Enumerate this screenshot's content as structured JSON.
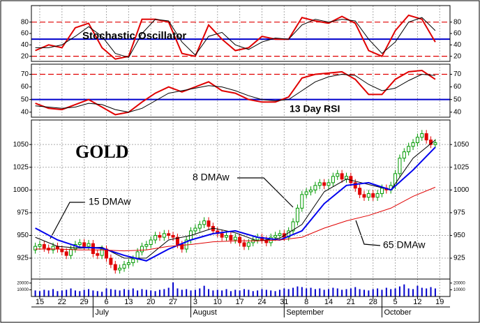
{
  "chart_data": [
    {
      "type": "line",
      "title": "Stochastic Oscillator",
      "ylim": [
        11,
        109
      ],
      "yticks": [
        20,
        40,
        60,
        80
      ],
      "hlines": [
        {
          "value": 80,
          "color": "#e00000",
          "style": "dashed"
        },
        {
          "value": 50,
          "color": "#0000cc",
          "style": "solid"
        },
        {
          "value": 20,
          "color": "#e00000",
          "style": "dashed"
        }
      ],
      "series": [
        {
          "color": "#e00000",
          "x": [
            0,
            3,
            6,
            9,
            12,
            15,
            18,
            21,
            24,
            27,
            30,
            33,
            36,
            39,
            42,
            45,
            48,
            51,
            54,
            57,
            60,
            63,
            66,
            69,
            72,
            75,
            78,
            81,
            84,
            87,
            90
          ],
          "values": [
            30,
            40,
            35,
            70,
            78,
            35,
            15,
            20,
            85,
            85,
            80,
            25,
            20,
            75,
            50,
            30,
            35,
            55,
            50,
            50,
            88,
            82,
            78,
            90,
            78,
            30,
            20,
            65,
            92,
            85,
            45
          ]
        },
        {
          "color": "#000000",
          "x": [
            0,
            3,
            6,
            9,
            12,
            15,
            18,
            21,
            24,
            27,
            30,
            33,
            36,
            39,
            42,
            45,
            48,
            51,
            54,
            57,
            60,
            63,
            66,
            69,
            72,
            75,
            78,
            81,
            84,
            87,
            90
          ],
          "values": [
            35,
            35,
            40,
            55,
            72,
            55,
            25,
            18,
            60,
            85,
            82,
            45,
            22,
            55,
            62,
            40,
            32,
            45,
            52,
            50,
            75,
            85,
            80,
            85,
            82,
            50,
            25,
            45,
            80,
            88,
            65
          ]
        }
      ]
    },
    {
      "type": "line",
      "title": "13 Day RSI",
      "ylim": [
        36,
        78
      ],
      "yticks": [
        40,
        50,
        60,
        70
      ],
      "hlines": [
        {
          "value": 70,
          "color": "#e00000",
          "style": "dashed"
        },
        {
          "value": 50,
          "color": "#0000cc",
          "style": "solid"
        }
      ],
      "series": [
        {
          "color": "#e00000",
          "x": [
            0,
            3,
            6,
            9,
            12,
            15,
            18,
            21,
            24,
            27,
            30,
            33,
            36,
            39,
            42,
            45,
            48,
            51,
            54,
            57,
            60,
            63,
            66,
            69,
            72,
            75,
            78,
            81,
            84,
            87,
            90
          ],
          "values": [
            47,
            43,
            42,
            46,
            50,
            44,
            38,
            40,
            48,
            55,
            60,
            56,
            60,
            64,
            57,
            55,
            50,
            48,
            48,
            52,
            67,
            70,
            71,
            72,
            66,
            54,
            54,
            66,
            72,
            73,
            66
          ]
        },
        {
          "color": "#000000",
          "x": [
            0,
            3,
            6,
            9,
            12,
            15,
            18,
            21,
            24,
            27,
            30,
            33,
            36,
            39,
            42,
            45,
            48,
            51,
            54,
            57,
            60,
            63,
            66,
            69,
            72,
            75,
            78,
            81,
            84,
            87,
            90
          ],
          "values": [
            45,
            44,
            43,
            44,
            47,
            46,
            42,
            40,
            43,
            49,
            55,
            57,
            59,
            61,
            60,
            57,
            53,
            50,
            49,
            50,
            57,
            64,
            68,
            70,
            69,
            62,
            57,
            59,
            65,
            70,
            69
          ]
        }
      ]
    },
    {
      "type": "candlestick",
      "title": "GOLD",
      "ylim": [
        902,
        1077
      ],
      "yticks": [
        925,
        950,
        975,
        1000,
        1025,
        1050
      ],
      "grid": true,
      "up_color": "#009900",
      "down_color": "#e00000",
      "open": [
        934,
        938,
        940,
        936,
        934,
        938,
        935,
        932,
        928,
        935,
        940,
        942,
        938,
        941,
        930,
        928,
        935,
        925,
        918,
        912,
        914,
        918,
        920,
        924,
        932,
        938,
        940,
        945,
        950,
        948,
        952,
        950,
        948,
        940,
        935,
        945,
        955,
        958,
        962,
        966,
        960,
        955,
        952,
        948,
        950,
        945,
        948,
        942,
        938,
        942,
        945,
        948,
        945,
        942,
        948,
        950,
        952,
        948,
        955,
        965,
        980,
        995,
        998,
        1000,
        1005,
        1008,
        1005,
        1008,
        1015,
        1018,
        1012,
        1015,
        1008,
        1002,
        995,
        992,
        996,
        992,
        996,
        1002,
        1000,
        1005,
        1018,
        1035,
        1042,
        1048,
        1052,
        1058,
        1062,
        1055,
        1050
      ],
      "high": [
        942,
        944,
        944,
        940,
        942,
        942,
        939,
        936,
        939,
        944,
        946,
        946,
        945,
        945,
        934,
        939,
        939,
        929,
        922,
        918,
        922,
        924,
        928,
        936,
        942,
        944,
        949,
        954,
        954,
        956,
        956,
        954,
        952,
        944,
        949,
        959,
        962,
        966,
        970,
        970,
        964,
        959,
        956,
        954,
        954,
        952,
        952,
        946,
        946,
        949,
        952,
        952,
        949,
        952,
        954,
        956,
        956,
        959,
        969,
        984,
        999,
        1002,
        1004,
        1009,
        1012,
        1012,
        1012,
        1019,
        1022,
        1022,
        1019,
        1019,
        1012,
        1006,
        999,
        1000,
        1000,
        1000,
        1006,
        1006,
        1009,
        1022,
        1039,
        1046,
        1052,
        1056,
        1062,
        1066,
        1066,
        1059,
        1056
      ],
      "low": [
        930,
        934,
        932,
        930,
        930,
        931,
        928,
        924,
        924,
        931,
        936,
        934,
        934,
        926,
        924,
        924,
        921,
        914,
        908,
        908,
        910,
        914,
        916,
        920,
        928,
        934,
        936,
        941,
        944,
        944,
        946,
        944,
        936,
        931,
        931,
        941,
        951,
        954,
        958,
        956,
        951,
        948,
        944,
        944,
        941,
        941,
        938,
        934,
        934,
        938,
        941,
        941,
        938,
        938,
        944,
        946,
        944,
        944,
        951,
        961,
        976,
        991,
        994,
        996,
        1001,
        1001,
        1001,
        1004,
        1011,
        1008,
        1008,
        1004,
        998,
        991,
        988,
        988,
        988,
        988,
        992,
        996,
        996,
        1001,
        1014,
        1031,
        1038,
        1044,
        1048,
        1054,
        1051,
        1046,
        1046
      ],
      "close": [
        938,
        940,
        936,
        934,
        938,
        935,
        932,
        928,
        935,
        940,
        942,
        938,
        941,
        930,
        928,
        935,
        925,
        918,
        912,
        914,
        918,
        920,
        924,
        932,
        938,
        940,
        945,
        950,
        948,
        952,
        950,
        948,
        940,
        935,
        945,
        955,
        958,
        962,
        966,
        960,
        955,
        952,
        948,
        950,
        945,
        948,
        942,
        938,
        942,
        945,
        948,
        945,
        942,
        948,
        950,
        952,
        948,
        955,
        965,
        980,
        995,
        998,
        1000,
        1005,
        1008,
        1005,
        1008,
        1015,
        1018,
        1012,
        1015,
        1008,
        1002,
        995,
        992,
        996,
        992,
        996,
        1002,
        1000,
        1005,
        1018,
        1035,
        1042,
        1048,
        1052,
        1058,
        1062,
        1055,
        1050,
        1052
      ],
      "series": [
        {
          "name": "8 DMAw",
          "color": "#000000",
          "x": [
            0,
            5,
            10,
            15,
            20,
            25,
            30,
            35,
            40,
            45,
            50,
            55,
            60,
            65,
            70,
            75,
            80,
            85,
            90
          ],
          "values": [
            948,
            938,
            936,
            937,
            925,
            925,
            945,
            950,
            958,
            953,
            944,
            947,
            962,
            998,
            1012,
            1006,
            1000,
            1035,
            1055
          ]
        },
        {
          "name": "15 DMAw",
          "color": "#0000ee",
          "x": [
            0,
            5,
            10,
            15,
            20,
            25,
            30,
            35,
            40,
            45,
            50,
            55,
            60,
            65,
            70,
            75,
            80,
            85,
            90
          ],
          "values": [
            958,
            945,
            937,
            936,
            928,
            922,
            935,
            945,
            952,
            955,
            948,
            945,
            955,
            985,
            1005,
            1008,
            1000,
            1022,
            1047
          ]
        },
        {
          "name": "65 DMAw",
          "color": "#e00000",
          "x": [
            0,
            5,
            10,
            15,
            20,
            25,
            30,
            35,
            40,
            45,
            50,
            55,
            60,
            65,
            70,
            75,
            80,
            85,
            90
          ],
          "values": [
            935,
            935,
            934,
            934,
            933,
            934,
            938,
            940,
            943,
            944,
            944,
            945,
            948,
            958,
            966,
            972,
            980,
            993,
            1003
          ]
        }
      ]
    },
    {
      "type": "bar",
      "color": "#0000cc",
      "ylim": [
        0,
        26000
      ],
      "yticks": [
        10000,
        20000
      ],
      "grid": true,
      "categories": [
        null,
        "15",
        null,
        null,
        null,
        null,
        "22",
        null,
        null,
        null,
        null,
        "29",
        null,
        null,
        null,
        null,
        "6",
        null,
        null,
        null,
        null,
        "13",
        null,
        null,
        null,
        null,
        "20",
        null,
        null,
        null,
        null,
        "27",
        null,
        null,
        null,
        null,
        "3",
        null,
        null,
        null,
        null,
        "10",
        null,
        null,
        null,
        null,
        "17",
        null,
        null,
        null,
        null,
        "24",
        null,
        null,
        null,
        null,
        "31",
        null,
        null,
        null,
        null,
        "8",
        null,
        null,
        null,
        null,
        "14",
        null,
        null,
        null,
        null,
        "21",
        null,
        null,
        null,
        null,
        "28",
        null,
        null,
        null,
        null,
        "5",
        null,
        null,
        null,
        null,
        "12",
        null,
        null,
        null,
        null,
        "19"
      ],
      "values": [
        9000,
        8000,
        10000,
        9000,
        11000,
        8000,
        9000,
        10000,
        12000,
        9000,
        8000,
        10000,
        11000,
        9000,
        8000,
        7000,
        12000,
        11000,
        10000,
        9000,
        11000,
        10000,
        12000,
        9000,
        11000,
        10000,
        9000,
        8000,
        10000,
        11000,
        13000,
        21000,
        12000,
        10000,
        11000,
        9000,
        10000,
        12000,
        16000,
        11000,
        9000,
        10000,
        9000,
        11000,
        8000,
        10000,
        9000,
        11000,
        10000,
        8000,
        9000,
        11000,
        10000,
        9000,
        8000,
        10000,
        12000,
        11000,
        13000,
        15000,
        14000,
        12000,
        13000,
        11000,
        12000,
        10000,
        11000,
        13000,
        12000,
        10000,
        11000,
        12000,
        14000,
        11000,
        10000,
        9000,
        11000,
        12000,
        10000,
        13000,
        11000,
        12000,
        15000,
        18000,
        12000,
        11000,
        16000,
        13000,
        12000,
        14000,
        12000,
        null
      ],
      "x_groups": [
        {
          "label": "July",
          "start": 13
        },
        {
          "label": "August",
          "start": 35
        },
        {
          "label": "September",
          "start": 56
        },
        {
          "label": "October",
          "start": 78
        }
      ]
    }
  ]
}
